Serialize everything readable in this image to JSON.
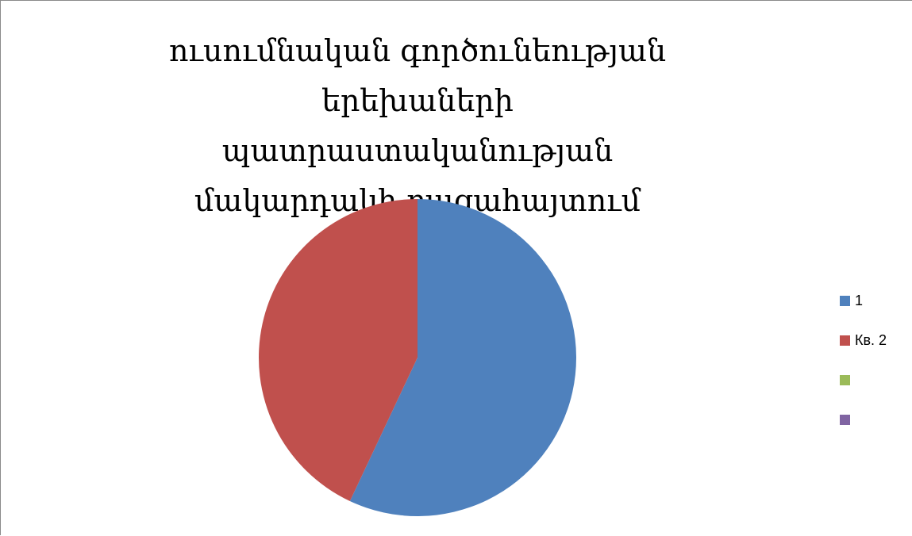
{
  "chart_data": {
    "type": "pie",
    "title": "ուսումնական գործունեության երեխաների պատրաստականության մակարդակի բացահայտում",
    "series": [
      {
        "name": "",
        "slices": [
          {
            "label": "1",
            "value": 57,
            "color": "#4F81BD"
          },
          {
            "label": "Кв. 2",
            "value": 43,
            "color": "#C0504D"
          },
          {
            "label": "",
            "value": 0,
            "color": "#9BBB59"
          },
          {
            "label": "",
            "value": 0,
            "color": "#8064A2"
          }
        ]
      }
    ],
    "legend_position": "right",
    "start_angle": "top",
    "direction": "clockwise"
  }
}
